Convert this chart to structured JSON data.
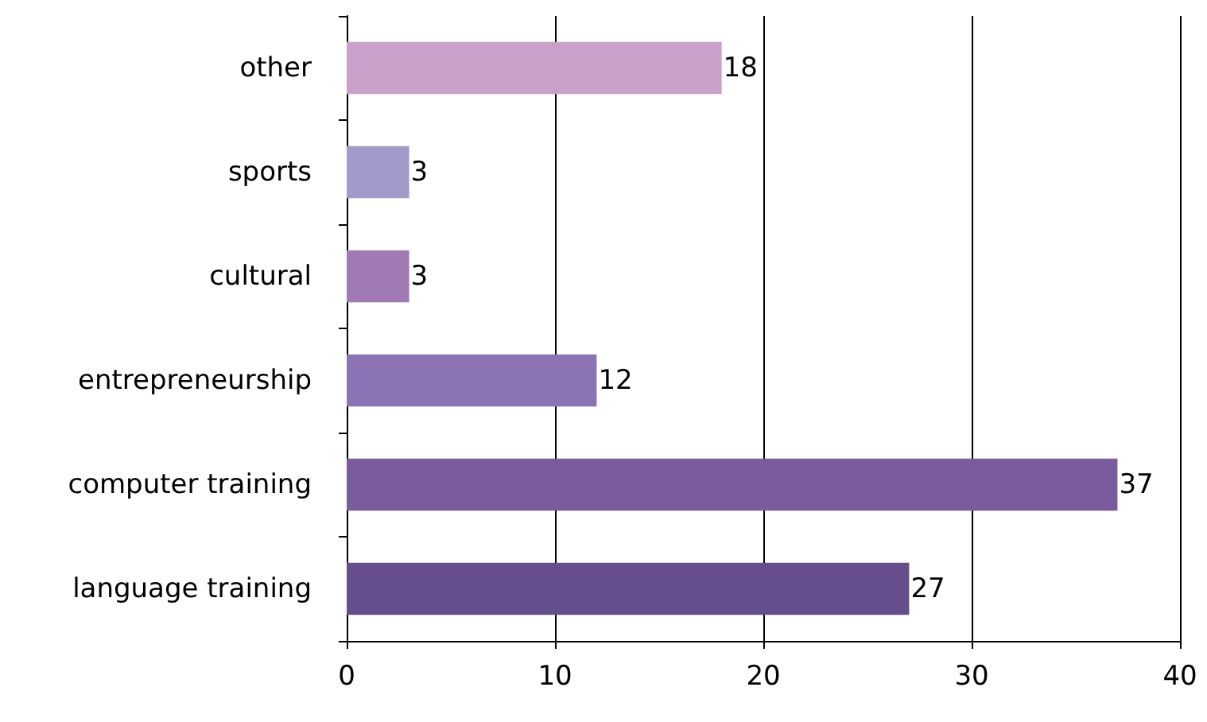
{
  "chart_data": {
    "type": "bar",
    "orientation": "horizontal",
    "categories": [
      "other",
      "sports",
      "cultural",
      "entrepreneurship",
      "computer training",
      "language training"
    ],
    "values": [
      18,
      3,
      3,
      12,
      37,
      27
    ],
    "colors": [
      "#c8a0c8",
      "#a09bcb",
      "#a07ab4",
      "#8c74b4",
      "#7a5c9c",
      "#664e8c"
    ],
    "xlim": [
      0,
      40
    ],
    "xticks": [
      0,
      10,
      20,
      30,
      40
    ],
    "grid": "x",
    "data_labels": true
  }
}
